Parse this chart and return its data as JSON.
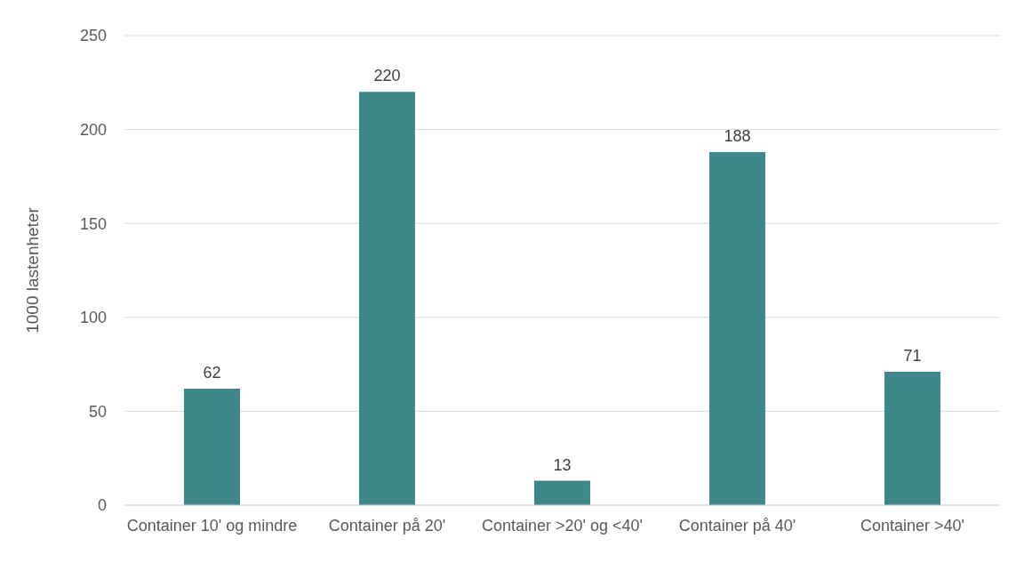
{
  "chart_data": {
    "type": "bar",
    "ylabel": "1000 lastenheter",
    "categories": [
      "Container 10' og mindre",
      "Container på 20'",
      "Container >20' og <40'",
      "Container på 40'",
      "Container >40'"
    ],
    "values": [
      62,
      220,
      13,
      188,
      71
    ],
    "color": "#3f878b",
    "ylim": [
      0,
      250
    ],
    "yticks": [
      0,
      50,
      100,
      150,
      200,
      250
    ],
    "grid": "y",
    "data_labels": true
  }
}
